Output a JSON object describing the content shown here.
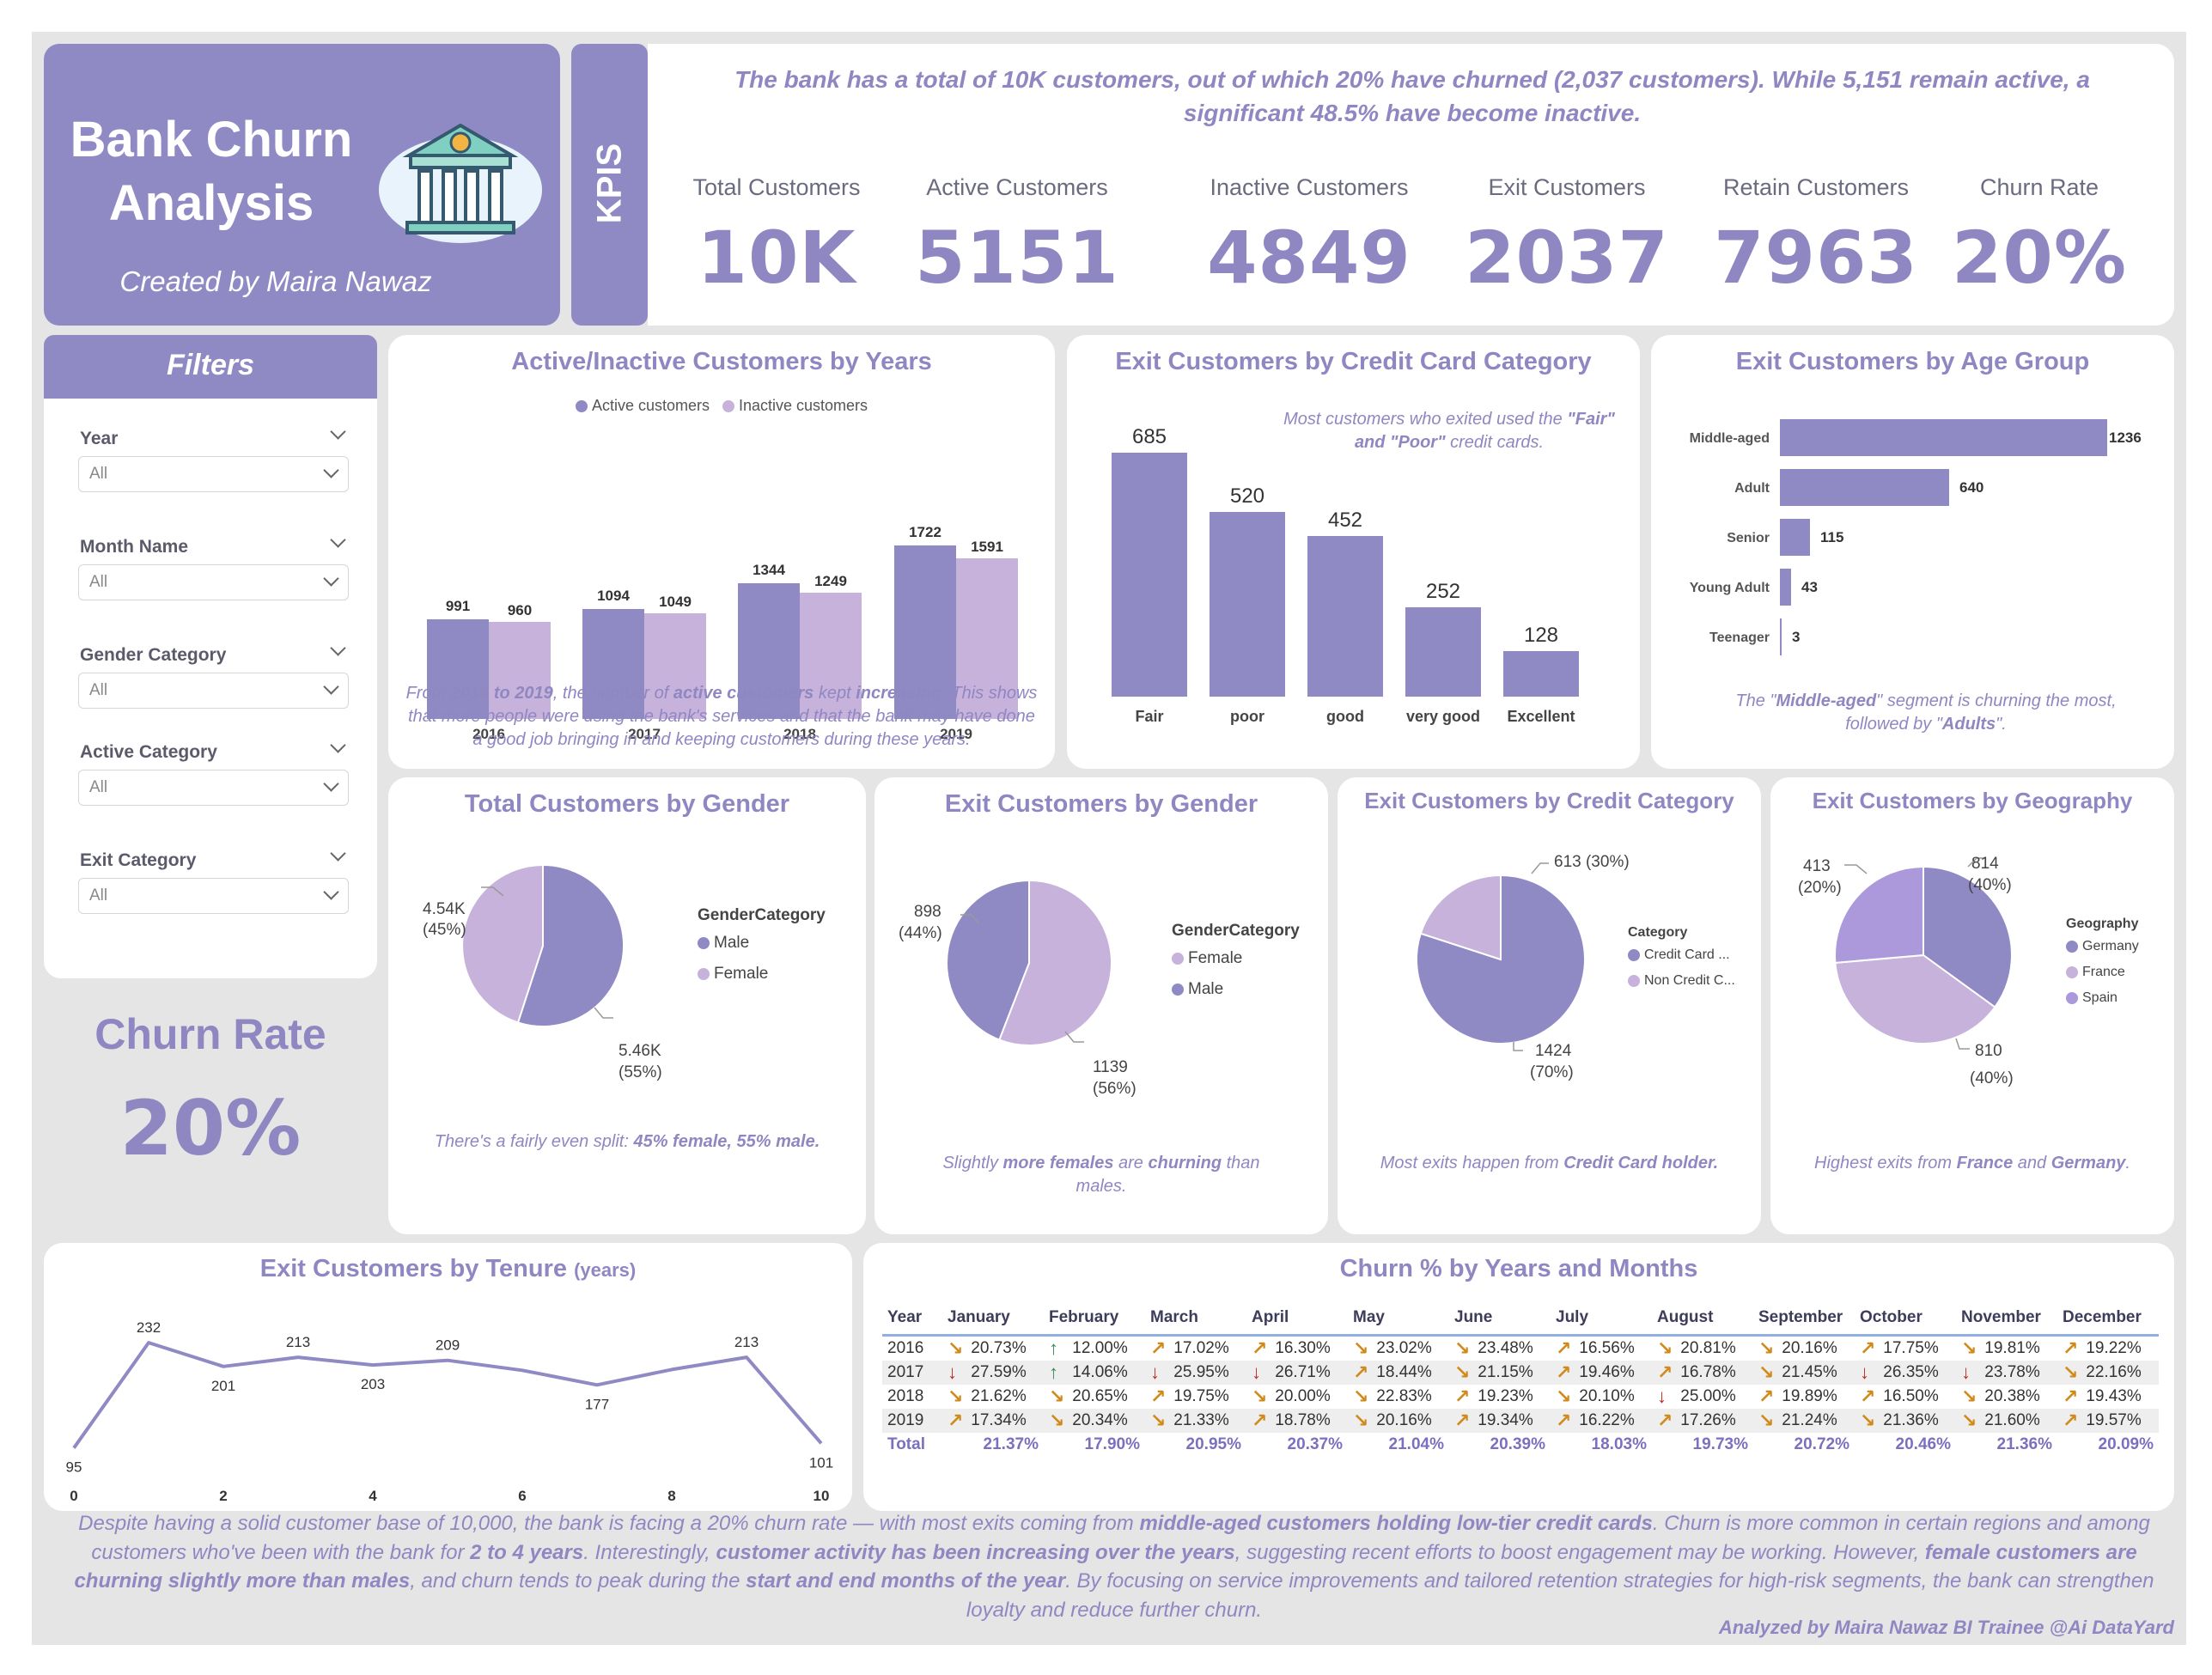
{
  "header": {
    "title_line1": "Bank Churn",
    "title_line2": "Analysis",
    "subtitle": "Created by Maira Nawaz",
    "kpis_tab": "KPIS",
    "summary": "The bank has a total of 10K customers, out of which 20% have churned (2,037 customers).  While 5,151 remain active, a significant 48.5% have become inactive."
  },
  "kpis": [
    {
      "label": "Total Customers",
      "value": "10K"
    },
    {
      "label": "Active Customers",
      "value": "5151"
    },
    {
      "label": "Inactive Customers",
      "value": "4849"
    },
    {
      "label": "Exit Customers",
      "value": "2037"
    },
    {
      "label": "Retain Customers",
      "value": "7963"
    },
    {
      "label": "Churn Rate",
      "value": "20%"
    }
  ],
  "filters": {
    "title": "Filters",
    "items": [
      {
        "label": "Year",
        "value": "All"
      },
      {
        "label": "Month Name",
        "value": "All"
      },
      {
        "label": "Gender Category",
        "value": "All"
      },
      {
        "label": "Active Category",
        "value": "All"
      },
      {
        "label": "Exit Category",
        "value": "All"
      }
    ]
  },
  "churn_rate_card": {
    "label": "Churn Rate",
    "value": "20%"
  },
  "colors": {
    "primary": "#8f89c4",
    "light": "#c6b2da",
    "mid": "#a898d8",
    "canvas": "#e5e5e5"
  },
  "active_inactive": {
    "title": "Active/Inactive Customers by Years",
    "legend": [
      "Active customers",
      "Inactive customers"
    ],
    "note_pre": "From ",
    "note_b1": "2016 to 2019",
    "note_mid": ", the number of ",
    "note_b2": "active customers",
    "note_mid2": " kept ",
    "note_b3": "increasing",
    "note_post": ". This shows that more people were using the bank's services and that the bank may have done a good job bringing in and keeping customers during these years."
  },
  "credit_card": {
    "title": "Exit Customers by Credit Card Category",
    "note_pre": "Most customers who exited used the ",
    "note_b": "\"Fair\" and \"Poor\"",
    "note_post": " credit cards."
  },
  "age_group": {
    "title": "Exit Customers by Age Group",
    "note_pre": "The \"",
    "note_b1": "Middle-aged",
    "note_mid": "\" segment is churning the most, followed by \"",
    "note_b2": "Adults",
    "note_post": "\"."
  },
  "gender_total": {
    "title": "Total Customers by Gender",
    "legend_title": "GenderCategory",
    "labels": [
      "4.54K",
      "(45%)",
      "5.46K",
      "(55%)"
    ],
    "note_pre": "There's a fairly even split: ",
    "note_b": "45% female, 55% male."
  },
  "gender_exit": {
    "title": "Exit Customers by Gender",
    "legend_title": "GenderCategory",
    "labels": [
      "898",
      "(44%)",
      "1139",
      "(56%)"
    ],
    "note_pre": "Slightly ",
    "note_b1": "more females",
    "note_mid": " are ",
    "note_b2": "churning",
    "note_post": " than males."
  },
  "credit_category": {
    "title": "Exit Customers by Credit Category",
    "legend_title": "Category",
    "labels": [
      "613 (30%)",
      "1424",
      "(70%)"
    ],
    "note_pre": "Most exits happen from ",
    "note_b": "Credit Card holder."
  },
  "geography": {
    "title": "Exit Customers by Geography",
    "legend_title": "Geography",
    "labels": [
      "413",
      "(20%)",
      "814",
      "(40%)",
      "810",
      "(40%)"
    ],
    "note_pre": "Highest exits from ",
    "note_b1": "France",
    "note_mid": " and ",
    "note_b2": "Germany",
    "note_post": "."
  },
  "tenure": {
    "title": "Exit Customers by Tenure ",
    "title_unit": "(years)"
  },
  "churn_table": {
    "title": "Churn % by Years and Months",
    "headers": [
      "Year",
      "January",
      "February",
      "March",
      "April",
      "May",
      "June",
      "July",
      "August",
      "September",
      "October",
      "November",
      "December"
    ],
    "rows": [
      {
        "year": "2016",
        "cells": [
          [
            "se",
            "20.73%"
          ],
          [
            "u",
            "12.00%"
          ],
          [
            "ne",
            "17.02%"
          ],
          [
            "ne",
            "16.30%"
          ],
          [
            "se",
            "23.02%"
          ],
          [
            "se",
            "23.48%"
          ],
          [
            "ne",
            "16.56%"
          ],
          [
            "se",
            "20.81%"
          ],
          [
            "se",
            "20.16%"
          ],
          [
            "ne",
            "17.75%"
          ],
          [
            "se",
            "19.81%"
          ],
          [
            "ne",
            "19.22%"
          ]
        ]
      },
      {
        "year": "2017",
        "cells": [
          [
            "d",
            "27.59%"
          ],
          [
            "u",
            "14.06%"
          ],
          [
            "d",
            "25.95%"
          ],
          [
            "d",
            "26.71%"
          ],
          [
            "ne",
            "18.44%"
          ],
          [
            "se",
            "21.15%"
          ],
          [
            "ne",
            "19.46%"
          ],
          [
            "ne",
            "16.78%"
          ],
          [
            "se",
            "21.45%"
          ],
          [
            "d",
            "26.35%"
          ],
          [
            "d",
            "23.78%"
          ],
          [
            "se",
            "22.16%"
          ]
        ]
      },
      {
        "year": "2018",
        "cells": [
          [
            "se",
            "21.62%"
          ],
          [
            "se",
            "20.65%"
          ],
          [
            "ne",
            "19.75%"
          ],
          [
            "se",
            "20.00%"
          ],
          [
            "se",
            "22.83%"
          ],
          [
            "ne",
            "19.23%"
          ],
          [
            "se",
            "20.10%"
          ],
          [
            "d",
            "25.00%"
          ],
          [
            "ne",
            "19.89%"
          ],
          [
            "ne",
            "16.50%"
          ],
          [
            "se",
            "20.38%"
          ],
          [
            "ne",
            "19.43%"
          ]
        ]
      },
      {
        "year": "2019",
        "cells": [
          [
            "ne",
            "17.34%"
          ],
          [
            "se",
            "20.34%"
          ],
          [
            "se",
            "21.33%"
          ],
          [
            "ne",
            "18.78%"
          ],
          [
            "se",
            "20.16%"
          ],
          [
            "ne",
            "19.34%"
          ],
          [
            "ne",
            "16.22%"
          ],
          [
            "ne",
            "17.26%"
          ],
          [
            "se",
            "21.24%"
          ],
          [
            "se",
            "21.36%"
          ],
          [
            "se",
            "21.60%"
          ],
          [
            "ne",
            "19.57%"
          ]
        ]
      }
    ],
    "total_label": "Total",
    "totals": [
      "21.37%",
      "17.90%",
      "20.95%",
      "20.37%",
      "21.04%",
      "20.39%",
      "18.03%",
      "19.73%",
      "20.72%",
      "20.46%",
      "21.36%",
      "20.09%"
    ]
  },
  "footer": {
    "p1": "Despite having a solid customer base of 10,000, the bank is facing a 20% churn rate — with most exits coming from ",
    "b1": "middle-aged customers holding low-tier credit cards",
    "p2": ". Churn is more common in certain regions and among customers who've been with the bank for ",
    "b2": "2 to 4 years",
    "p3": ". Interestingly, ",
    "b3": "customer activity has been increasing over the years",
    "p4": ", suggesting recent efforts to boost engagement may be working. However, ",
    "b4": "female customers are churning slightly more than males",
    "p5": ", and churn tends to peak during the ",
    "b5": "start and end months of the year",
    "p6": ". By focusing on service improvements and tailored retention strategies for high-risk segments, the bank can strengthen loyalty and reduce further churn.",
    "credit": "Analyzed by Maira Nawaz BI Trainee @Ai DataYard"
  },
  "chart_data": [
    {
      "type": "bar",
      "title": "Active/Inactive Customers by Years",
      "categories": [
        "2016",
        "2017",
        "2018",
        "2019"
      ],
      "series": [
        {
          "name": "Active customers",
          "values": [
            991,
            1094,
            1344,
            1722
          ]
        },
        {
          "name": "Inactive customers",
          "values": [
            960,
            1049,
            1249,
            1591
          ]
        }
      ],
      "legend": "top"
    },
    {
      "type": "bar",
      "title": "Exit Customers by Credit Card Category",
      "categories": [
        "Fair",
        "poor",
        "good",
        "very good",
        "Excellent"
      ],
      "values": [
        685,
        520,
        452,
        252,
        128
      ]
    },
    {
      "type": "bar",
      "title": "Exit Customers by Age Group",
      "orientation": "horizontal",
      "categories": [
        "Middle-aged",
        "Adult",
        "Senior",
        "Young Adult",
        "Teenager"
      ],
      "values": [
        1236,
        640,
        115,
        43,
        3
      ]
    },
    {
      "type": "pie",
      "title": "Total Customers by Gender",
      "categories": [
        "Male",
        "Female"
      ],
      "values": [
        5460,
        4540
      ],
      "legend": "right"
    },
    {
      "type": "pie",
      "title": "Exit Customers by Gender",
      "categories": [
        "Female",
        "Male"
      ],
      "values": [
        1139,
        898
      ],
      "legend": "right"
    },
    {
      "type": "pie",
      "title": "Exit Customers by Credit Category",
      "categories": [
        "Credit Card ...",
        "Non Credit C..."
      ],
      "values": [
        1424,
        613
      ],
      "legend": "right"
    },
    {
      "type": "pie",
      "title": "Exit Customers by Geography",
      "categories": [
        "Germany",
        "France",
        "Spain"
      ],
      "values": [
        814,
        810,
        413
      ],
      "legend": "right"
    },
    {
      "type": "line",
      "title": "Exit Customers by Tenure (years)",
      "x": [
        0,
        1,
        2,
        3,
        4,
        5,
        6,
        7,
        8,
        9,
        10
      ],
      "values": [
        95,
        232,
        201,
        213,
        203,
        209,
        196,
        177,
        197,
        213,
        101
      ],
      "data_labels": {
        "0": "95",
        "1": "232",
        "2": "201",
        "3": "213",
        "4": "203",
        "5": "209",
        "7": "177",
        "9": "213",
        "10": "101"
      },
      "x_ticks": [
        "0",
        "2",
        "4",
        "6",
        "8",
        "10"
      ]
    }
  ]
}
